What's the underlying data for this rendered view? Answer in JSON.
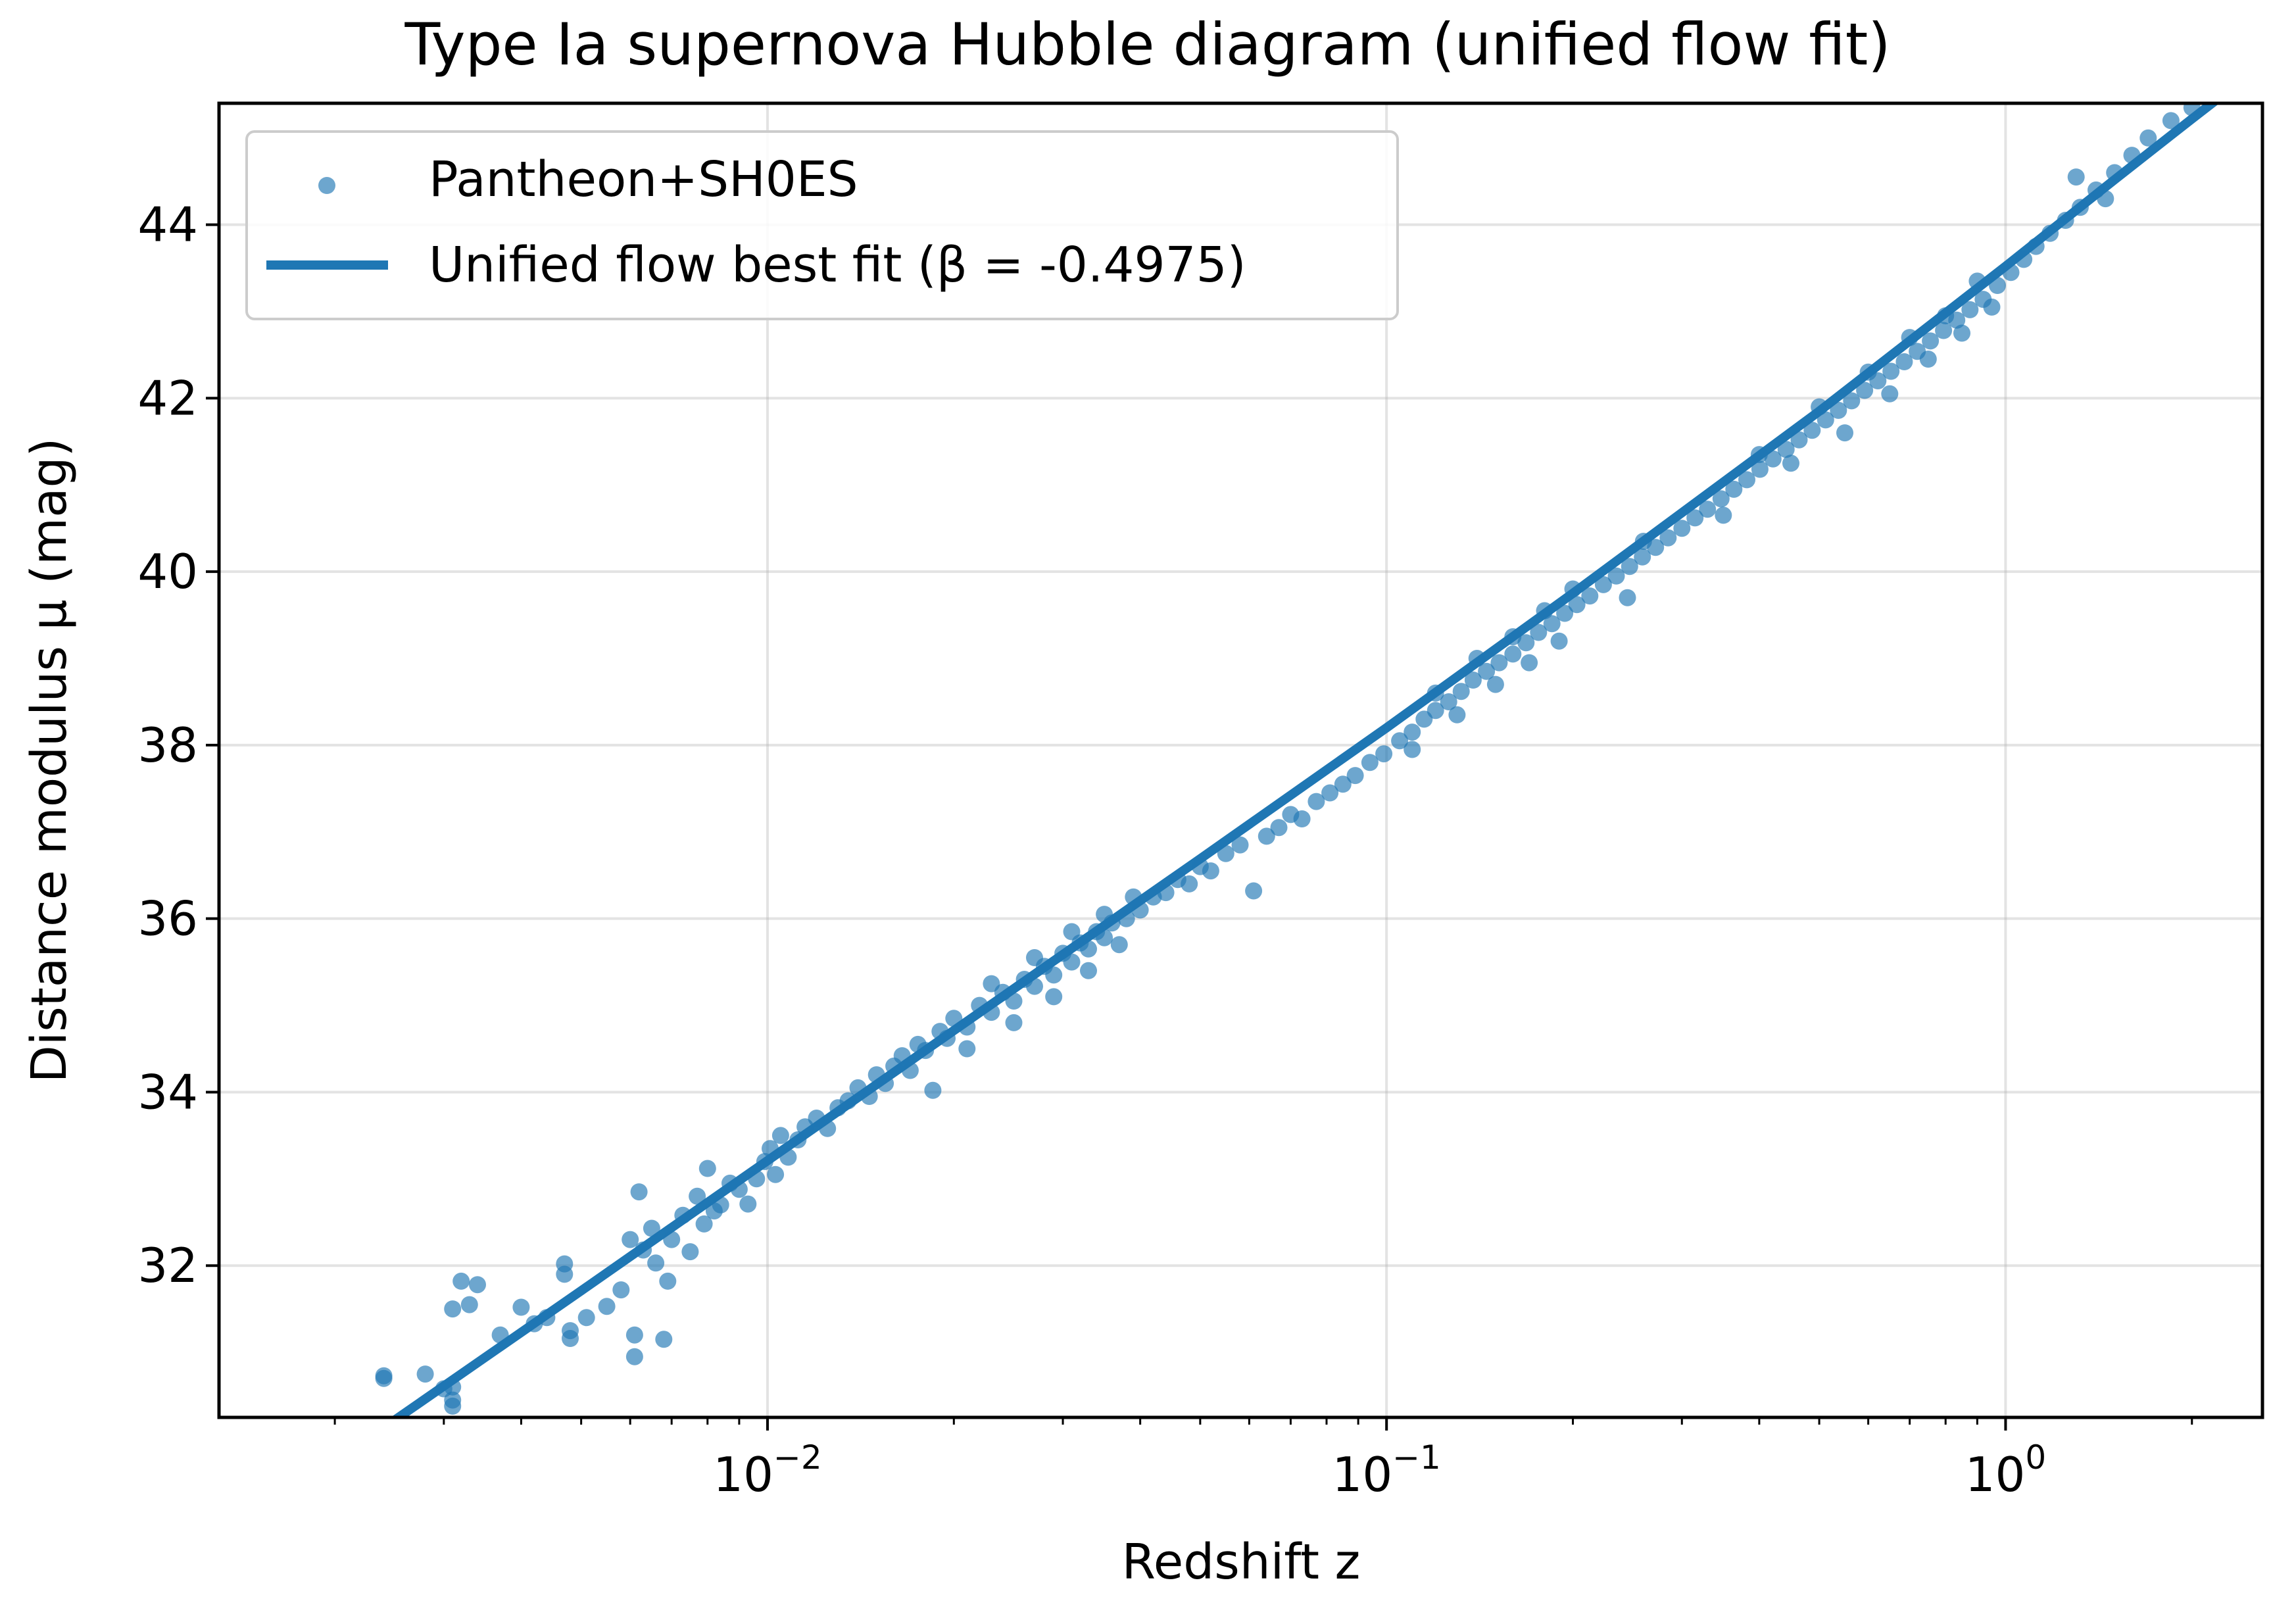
{
  "chart_data": {
    "type": "scatter",
    "title": "Type Ia supernova Hubble diagram (unified flow fit)",
    "xlabel": "Redshift z",
    "ylabel": "Distance modulus μ (mag)",
    "x_scale": "log",
    "xlim": [
      0.0013,
      2.6
    ],
    "ylim": [
      30.25,
      45.4
    ],
    "x_ticks": [
      {
        "value": 0.01,
        "base": "10",
        "exponent": "−2"
      },
      {
        "value": 0.1,
        "base": "10",
        "exponent": "−1"
      },
      {
        "value": 1,
        "base": "10",
        "exponent": "0"
      }
    ],
    "y_ticks": [
      32,
      34,
      36,
      38,
      40,
      42,
      44
    ],
    "y_tick_labels": [
      "32",
      "34",
      "36",
      "38",
      "40",
      "42",
      "44"
    ],
    "grid": true,
    "legend_position": "top-left",
    "colors": {
      "scatter": "#1f77b4",
      "line": "#1f77b4"
    },
    "series": [
      {
        "name": "Pantheon+SH0ES",
        "kind": "scatter",
        "points": [
          [
            0.0024,
            30.73
          ],
          [
            0.0024,
            30.7
          ],
          [
            0.0028,
            30.75
          ],
          [
            0.003,
            30.58
          ],
          [
            0.0031,
            30.6
          ],
          [
            0.0031,
            30.45
          ],
          [
            0.0031,
            30.38
          ],
          [
            0.0031,
            31.5
          ],
          [
            0.0032,
            31.82
          ],
          [
            0.0033,
            31.55
          ],
          [
            0.0034,
            31.78
          ],
          [
            0.0037,
            31.2
          ],
          [
            0.004,
            31.52
          ],
          [
            0.0042,
            31.33
          ],
          [
            0.0044,
            31.4
          ],
          [
            0.0047,
            32.02
          ],
          [
            0.0047,
            31.9
          ],
          [
            0.0048,
            31.16
          ],
          [
            0.0048,
            31.25
          ],
          [
            0.0051,
            31.4
          ],
          [
            0.0055,
            31.53
          ],
          [
            0.0058,
            31.72
          ],
          [
            0.006,
            32.3
          ],
          [
            0.0061,
            31.2
          ],
          [
            0.0061,
            30.95
          ],
          [
            0.0062,
            32.85
          ],
          [
            0.0063,
            32.18
          ],
          [
            0.0065,
            32.43
          ],
          [
            0.0066,
            32.03
          ],
          [
            0.0068,
            31.15
          ],
          [
            0.0069,
            31.82
          ],
          [
            0.007,
            32.3
          ],
          [
            0.0073,
            32.58
          ],
          [
            0.0075,
            32.16
          ],
          [
            0.0077,
            32.8
          ],
          [
            0.0079,
            32.48
          ],
          [
            0.008,
            33.12
          ],
          [
            0.0082,
            32.63
          ],
          [
            0.0084,
            32.7
          ],
          [
            0.0087,
            32.95
          ],
          [
            0.009,
            32.88
          ],
          [
            0.0093,
            32.71
          ],
          [
            0.0096,
            33.0
          ],
          [
            0.0099,
            33.2
          ],
          [
            0.0101,
            33.35
          ],
          [
            0.0103,
            33.05
          ],
          [
            0.0105,
            33.5
          ],
          [
            0.0108,
            33.25
          ],
          [
            0.0112,
            33.45
          ],
          [
            0.0115,
            33.6
          ],
          [
            0.012,
            33.7
          ],
          [
            0.0125,
            33.58
          ],
          [
            0.013,
            33.82
          ],
          [
            0.0135,
            33.9
          ],
          [
            0.014,
            34.05
          ],
          [
            0.0146,
            33.95
          ],
          [
            0.015,
            34.2
          ],
          [
            0.0155,
            34.1
          ],
          [
            0.016,
            34.3
          ],
          [
            0.0165,
            34.42
          ],
          [
            0.017,
            34.25
          ],
          [
            0.0175,
            34.55
          ],
          [
            0.018,
            34.48
          ],
          [
            0.0185,
            34.02
          ],
          [
            0.019,
            34.7
          ],
          [
            0.0195,
            34.62
          ],
          [
            0.02,
            34.85
          ],
          [
            0.021,
            34.75
          ],
          [
            0.022,
            35.0
          ],
          [
            0.023,
            34.92
          ],
          [
            0.024,
            35.15
          ],
          [
            0.025,
            35.05
          ],
          [
            0.026,
            35.3
          ],
          [
            0.027,
            35.22
          ],
          [
            0.028,
            35.45
          ],
          [
            0.029,
            35.35
          ],
          [
            0.03,
            35.6
          ],
          [
            0.031,
            35.5
          ],
          [
            0.032,
            35.72
          ],
          [
            0.033,
            35.65
          ],
          [
            0.034,
            35.85
          ],
          [
            0.035,
            35.78
          ],
          [
            0.036,
            35.95
          ],
          [
            0.038,
            36.0
          ],
          [
            0.04,
            36.1
          ],
          [
            0.042,
            36.25
          ],
          [
            0.044,
            36.3
          ],
          [
            0.046,
            36.45
          ],
          [
            0.048,
            36.4
          ],
          [
            0.05,
            36.6
          ],
          [
            0.052,
            36.55
          ],
          [
            0.055,
            36.75
          ],
          [
            0.058,
            36.85
          ],
          [
            0.061,
            36.32
          ],
          [
            0.064,
            36.95
          ],
          [
            0.067,
            37.05
          ],
          [
            0.07,
            37.2
          ],
          [
            0.073,
            37.15
          ],
          [
            0.077,
            37.35
          ],
          [
            0.081,
            37.45
          ],
          [
            0.085,
            37.55
          ],
          [
            0.089,
            37.65
          ],
          [
            0.094,
            37.8
          ],
          [
            0.099,
            37.9
          ],
          [
            0.105,
            38.05
          ],
          [
            0.11,
            38.15
          ],
          [
            0.115,
            38.3
          ],
          [
            0.12,
            38.4
          ],
          [
            0.126,
            38.5
          ],
          [
            0.132,
            38.62
          ],
          [
            0.138,
            38.75
          ],
          [
            0.145,
            38.85
          ],
          [
            0.152,
            38.95
          ],
          [
            0.16,
            39.05
          ],
          [
            0.168,
            39.18
          ],
          [
            0.176,
            39.3
          ],
          [
            0.185,
            39.4
          ],
          [
            0.194,
            39.52
          ],
          [
            0.203,
            39.62
          ],
          [
            0.213,
            39.72
          ],
          [
            0.224,
            39.85
          ],
          [
            0.235,
            39.95
          ],
          [
            0.247,
            40.06
          ],
          [
            0.259,
            40.17
          ],
          [
            0.272,
            40.28
          ],
          [
            0.285,
            40.39
          ],
          [
            0.3,
            40.5
          ],
          [
            0.315,
            40.62
          ],
          [
            0.33,
            40.72
          ],
          [
            0.347,
            40.84
          ],
          [
            0.364,
            40.95
          ],
          [
            0.382,
            41.06
          ],
          [
            0.401,
            41.18
          ],
          [
            0.421,
            41.3
          ],
          [
            0.442,
            41.41
          ],
          [
            0.464,
            41.52
          ],
          [
            0.487,
            41.63
          ],
          [
            0.512,
            41.75
          ],
          [
            0.537,
            41.86
          ],
          [
            0.564,
            41.97
          ],
          [
            0.592,
            42.09
          ],
          [
            0.622,
            42.2
          ],
          [
            0.653,
            42.31
          ],
          [
            0.686,
            42.42
          ],
          [
            0.72,
            42.54
          ],
          [
            0.756,
            42.66
          ],
          [
            0.794,
            42.78
          ],
          [
            0.834,
            42.9
          ],
          [
            0.876,
            43.02
          ],
          [
            0.92,
            43.14
          ],
          [
            0.97,
            43.3
          ],
          [
            1.02,
            43.45
          ],
          [
            1.07,
            43.6
          ],
          [
            1.12,
            43.75
          ],
          [
            1.18,
            43.9
          ],
          [
            1.25,
            44.05
          ],
          [
            1.32,
            44.2
          ],
          [
            1.4,
            44.4
          ],
          [
            1.5,
            44.6
          ],
          [
            1.6,
            44.8
          ],
          [
            1.7,
            45.0
          ],
          [
            1.85,
            45.2
          ],
          [
            2.0,
            45.35
          ],
          [
            0.245,
            39.7
          ],
          [
            0.26,
            40.35
          ],
          [
            0.35,
            40.65
          ],
          [
            0.4,
            41.35
          ],
          [
            0.45,
            41.25
          ],
          [
            0.5,
            41.9
          ],
          [
            0.55,
            41.6
          ],
          [
            0.6,
            42.3
          ],
          [
            0.65,
            42.05
          ],
          [
            0.7,
            42.7
          ],
          [
            0.75,
            42.45
          ],
          [
            0.8,
            42.95
          ],
          [
            0.11,
            37.95
          ],
          [
            0.12,
            38.6
          ],
          [
            0.13,
            38.35
          ],
          [
            0.14,
            39.0
          ],
          [
            0.15,
            38.7
          ],
          [
            0.16,
            39.25
          ],
          [
            0.17,
            38.95
          ],
          [
            0.18,
            39.55
          ],
          [
            0.19,
            39.2
          ],
          [
            0.2,
            39.8
          ],
          [
            0.021,
            34.5
          ],
          [
            0.023,
            35.25
          ],
          [
            0.025,
            34.8
          ],
          [
            0.027,
            35.55
          ],
          [
            0.029,
            35.1
          ],
          [
            0.031,
            35.85
          ],
          [
            0.033,
            35.4
          ],
          [
            0.035,
            36.05
          ],
          [
            0.037,
            35.7
          ],
          [
            0.039,
            36.25
          ],
          [
            1.3,
            44.55
          ],
          [
            1.45,
            44.3
          ],
          [
            0.9,
            43.35
          ],
          [
            0.85,
            42.75
          ],
          [
            0.95,
            43.05
          ]
        ]
      },
      {
        "name": "Unified flow best fit (β = -0.4975)",
        "kind": "line",
        "points": [
          [
            0.0013,
            28.9
          ],
          [
            0.0025,
            30.22
          ],
          [
            0.005,
            31.71
          ],
          [
            0.01,
            33.21
          ],
          [
            0.02,
            34.71
          ],
          [
            0.05,
            36.69
          ],
          [
            0.1,
            38.2
          ],
          [
            0.2,
            39.75
          ],
          [
            0.5,
            41.85
          ],
          [
            1.0,
            43.52
          ],
          [
            1.5,
            44.52
          ],
          [
            2.0,
            45.22
          ],
          [
            2.6,
            45.85
          ]
        ]
      }
    ]
  }
}
